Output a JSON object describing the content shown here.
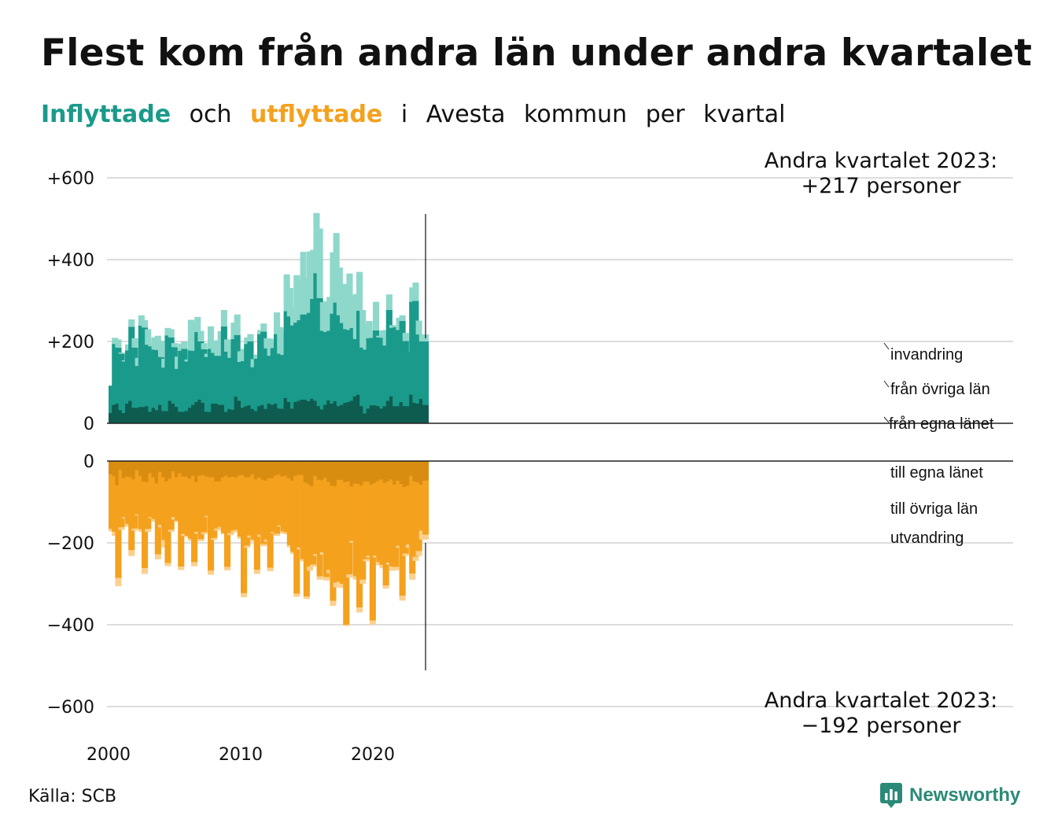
{
  "title": "Flest kom från andra län under andra kvartalet",
  "subtitle": {
    "part1": "Inflyttade",
    "part2": "och",
    "part3": "utflyttade",
    "part4": "i",
    "part5": "Avesta",
    "part6": "kommun",
    "part7": "per",
    "part8": "kvartal"
  },
  "source": "Källa: SCB",
  "brand": "Newsworthy",
  "colors": {
    "in_own": "#0e5c50",
    "in_other": "#1a9a8a",
    "in_immig": "#8ed8cb",
    "out_own": "#d98d10",
    "out_other": "#f4a11e",
    "out_emig": "#fbd08e",
    "grid": "#dddddd",
    "brand": "#2a8a77"
  },
  "chart_data": {
    "type": "bar",
    "x_start": "2000 Q1",
    "x_end": "2023 Q2",
    "x_ticks": [
      "2000",
      "2010",
      "2020"
    ],
    "y_ticks_top": [
      "+600",
      "+400",
      "+200",
      "0"
    ],
    "y_ticks_bottom": [
      "0",
      "−200",
      "−400",
      "−600"
    ],
    "ylim_top": [
      0,
      600
    ],
    "ylim_bottom": [
      -600,
      0
    ],
    "grid": true,
    "annotation_top": {
      "line1": "Andra kvartalet 2023:",
      "line2": "+217 personer"
    },
    "annotation_bottom": {
      "line1": "Andra kvartalet 2023:",
      "line2": "−192 personer"
    },
    "legend_in": [
      "invandring",
      "från övriga län",
      "från egna länet"
    ],
    "legend_out": [
      "till egna länet",
      "till övriga län",
      "utvandring"
    ],
    "inflow_totals": [
      92,
      209,
      205,
      173,
      154,
      193,
      254,
      208,
      160,
      264,
      252,
      230,
      196,
      210,
      214,
      202,
      158,
      233,
      230,
      196,
      163,
      195,
      200,
      156,
      253,
      247,
      260,
      226,
      196,
      170,
      237,
      198,
      203,
      225,
      277,
      205,
      196,
      246,
      266,
      176,
      182,
      210,
      218,
      157,
      168,
      228,
      244,
      208,
      207,
      200,
      271,
      235,
      227,
      364,
      331,
      283,
      362,
      352,
      419,
      356,
      420,
      424,
      514,
      476,
      296,
      298,
      309,
      418,
      465,
      381,
      341,
      340,
      366,
      313,
      316,
      370,
      277,
      242,
      250,
      227,
      297,
      214,
      227,
      228,
      315,
      240,
      237,
      258,
      264,
      221,
      175,
      332,
      344,
      251,
      217,
      217
    ],
    "inflow_own": [
      25,
      45,
      48,
      32,
      25,
      48,
      55,
      38,
      38,
      40,
      40,
      42,
      28,
      38,
      32,
      45,
      30,
      30,
      55,
      48,
      40,
      28,
      28,
      30,
      38,
      45,
      52,
      58,
      50,
      28,
      28,
      48,
      48,
      45,
      45,
      28,
      35,
      33,
      65,
      55,
      38,
      42,
      44,
      35,
      30,
      42,
      45,
      35,
      48,
      45,
      48,
      36,
      36,
      62,
      52,
      36,
      52,
      55,
      58,
      58,
      54,
      60,
      55,
      42,
      34,
      45,
      56,
      48,
      54,
      42,
      45,
      50,
      52,
      55,
      66,
      70,
      42,
      24,
      36,
      44,
      44,
      42,
      36,
      42,
      55,
      66,
      42,
      42,
      52,
      42,
      42,
      70,
      50,
      48,
      60,
      45
    ],
    "inflow_immig": [
      0,
      15,
      20,
      3,
      3,
      15,
      18,
      23,
      20,
      25,
      18,
      38,
      8,
      30,
      35,
      40,
      22,
      18,
      20,
      10,
      30,
      18,
      18,
      5,
      75,
      70,
      37,
      26,
      15,
      8,
      55,
      26,
      38,
      60,
      40,
      30,
      36,
      40,
      50,
      26,
      30,
      16,
      18,
      20,
      10,
      10,
      20,
      25,
      42,
      16,
      53,
      65,
      60,
      90,
      70,
      44,
      116,
      100,
      153,
      90,
      150,
      120,
      147,
      170,
      70,
      75,
      83,
      150,
      170,
      117,
      96,
      110,
      138,
      80,
      110,
      95,
      92,
      62,
      42,
      18,
      70,
      4,
      18,
      38,
      38,
      7,
      2,
      30,
      14,
      20,
      0,
      35,
      45,
      34,
      17,
      17
    ],
    "outflow_totals": [
      -172,
      -183,
      -306,
      -168,
      -140,
      -160,
      -232,
      -170,
      -133,
      -173,
      -276,
      -173,
      -140,
      -148,
      -240,
      -162,
      -211,
      -257,
      -173,
      -143,
      -149,
      -266,
      -183,
      -186,
      -195,
      -257,
      -178,
      -196,
      -179,
      -137,
      -278,
      -193,
      -170,
      -164,
      -179,
      -267,
      -181,
      -175,
      -171,
      -190,
      -333,
      -212,
      -187,
      -197,
      -276,
      -185,
      -208,
      -197,
      -269,
      -176,
      -183,
      -160,
      -177,
      -179,
      -211,
      -227,
      -332,
      -216,
      -245,
      -337,
      -268,
      -258,
      -232,
      -290,
      -229,
      -292,
      -274,
      -354,
      -309,
      -303,
      -310,
      -403,
      -285,
      -200,
      -290,
      -370,
      -300,
      -245,
      -236,
      -400,
      -236,
      -255,
      -262,
      -312,
      -253,
      -268,
      -267,
      -212,
      -341,
      -232,
      -212,
      -290,
      -244,
      -232,
      -192,
      -192
    ],
    "outflow_own": [
      -33,
      -37,
      -60,
      -22,
      -42,
      -38,
      -40,
      -45,
      -22,
      -36,
      -50,
      -52,
      -30,
      -40,
      -55,
      -26,
      -40,
      -50,
      -43,
      -25,
      -40,
      -30,
      -38,
      -38,
      -43,
      -36,
      -52,
      -36,
      -34,
      -38,
      -40,
      -40,
      -50,
      -50,
      -40,
      -36,
      -40,
      -38,
      -40,
      -35,
      -34,
      -40,
      -40,
      -33,
      -45,
      -40,
      -46,
      -48,
      -42,
      -42,
      -35,
      -33,
      -38,
      -36,
      -42,
      -48,
      -36,
      -34,
      -34,
      -52,
      -57,
      -62,
      -36,
      -46,
      -47,
      -41,
      -51,
      -60,
      -62,
      -46,
      -46,
      -52,
      -50,
      -62,
      -55,
      -56,
      -60,
      -50,
      -50,
      -58,
      -54,
      -49,
      -45,
      -54,
      -50,
      -45,
      -58,
      -48,
      -56,
      -64,
      -60,
      -36,
      -50,
      -52,
      -58,
      -48
    ],
    "outflow_emig": [
      -6,
      -10,
      -20,
      -6,
      -3,
      -6,
      -14,
      -5,
      -3,
      -6,
      -14,
      -7,
      -3,
      -6,
      -12,
      -6,
      -18,
      -8,
      -5,
      -6,
      -3,
      -8,
      -5,
      -3,
      -5,
      -10,
      -5,
      -5,
      -5,
      -3,
      -10,
      -5,
      -5,
      -3,
      -3,
      -8,
      -5,
      -5,
      -3,
      -5,
      -10,
      -5,
      -5,
      -5,
      -10,
      -5,
      -5,
      -5,
      -8,
      -3,
      -5,
      -3,
      -5,
      -5,
      -5,
      -5,
      -8,
      -5,
      -5,
      -6,
      -10,
      -5,
      -5,
      -8,
      -6,
      -8,
      -8,
      -12,
      -12,
      -8,
      -10,
      -3,
      -8,
      -5,
      -8,
      -12,
      -10,
      -5,
      -5,
      -10,
      -5,
      -8,
      -8,
      -8,
      -5,
      -10,
      -8,
      -5,
      -12,
      -6,
      -8,
      -15,
      -10,
      -12,
      -22,
      -12
    ]
  }
}
